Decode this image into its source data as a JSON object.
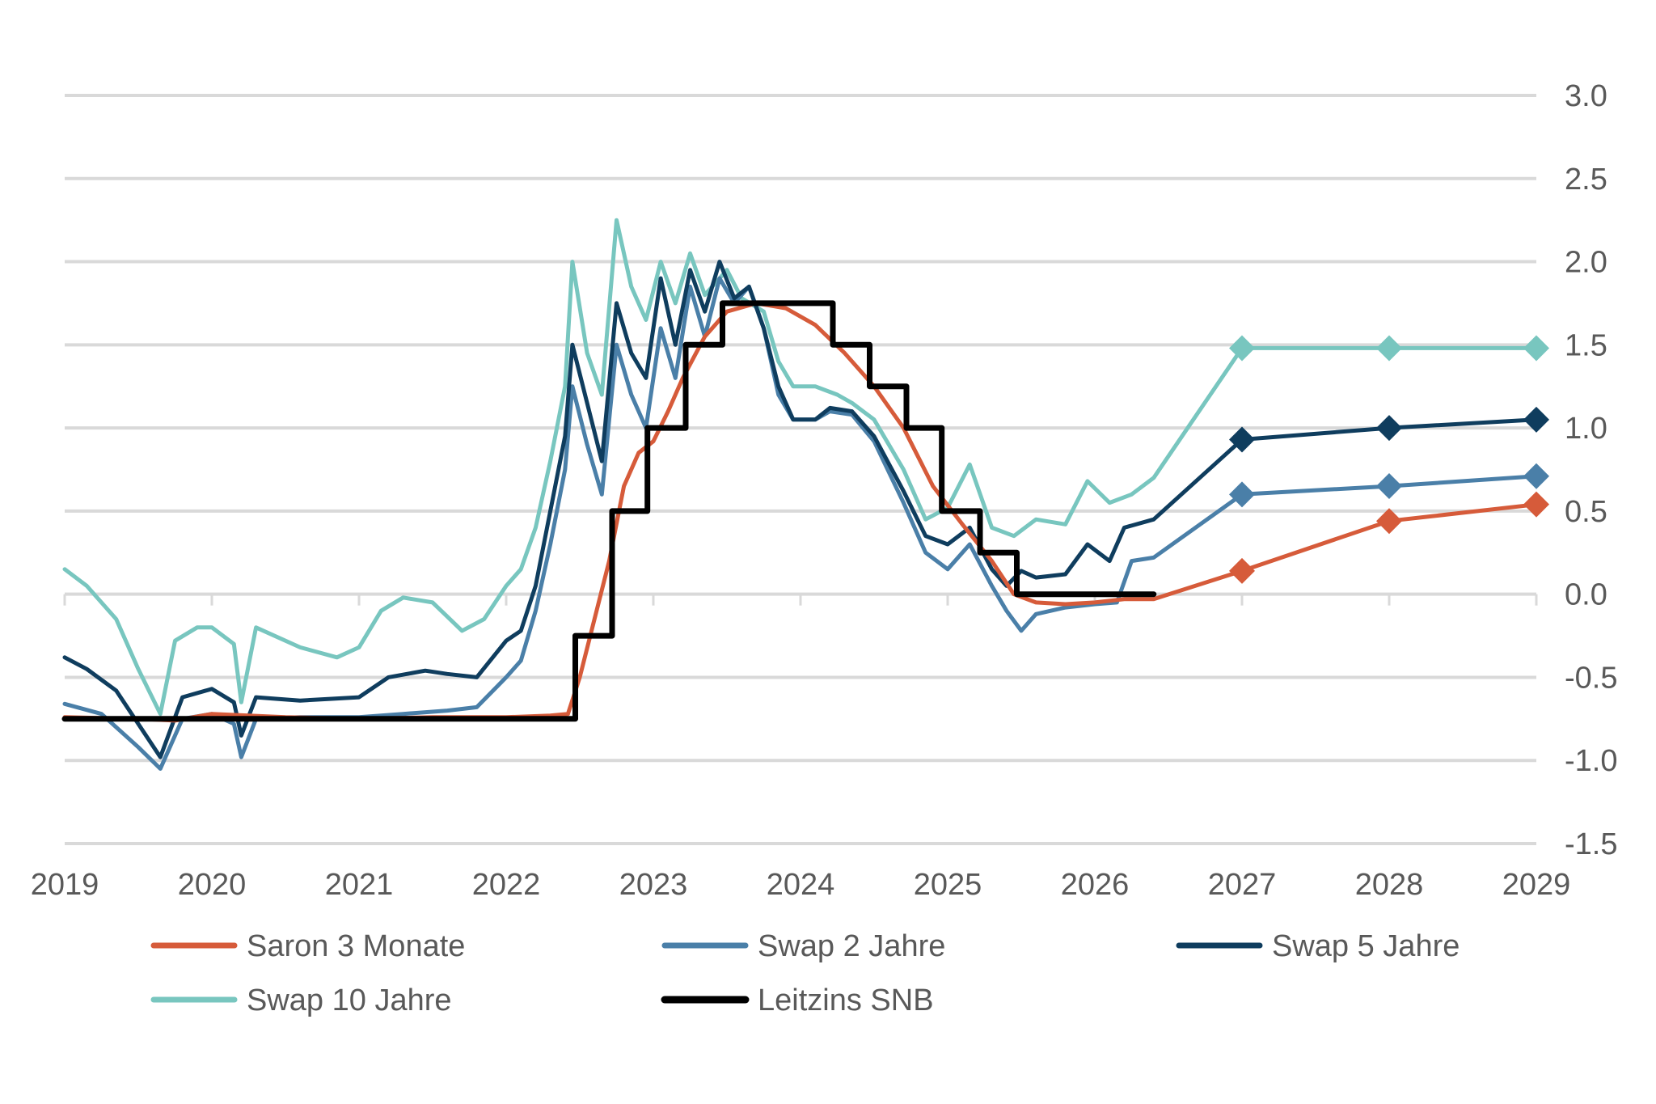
{
  "chart_data": {
    "type": "line",
    "title": "",
    "xlabel": "",
    "ylabel": "",
    "xlim": [
      2019,
      2029
    ],
    "ylim": [
      -1.5,
      3.0
    ],
    "x_ticks": [
      "2019",
      "2020",
      "2021",
      "2022",
      "2023",
      "2024",
      "2025",
      "2026",
      "2027",
      "2028",
      "2029"
    ],
    "y_ticks": [
      "3.0",
      "2.5",
      "2.0",
      "1.5",
      "1.0",
      "0.5",
      "0.0",
      "-0.5",
      "-1.0",
      "-1.5"
    ],
    "grid": "horizontal",
    "y_axis_side": "right",
    "legend_placement": "bottom",
    "series": [
      {
        "name": "Saron 3 Monate",
        "color": "#d65b3a",
        "points": [
          [
            2019.0,
            -0.74
          ],
          [
            2019.5,
            -0.75
          ],
          [
            2019.75,
            -0.76
          ],
          [
            2020.0,
            -0.72
          ],
          [
            2020.5,
            -0.74
          ],
          [
            2021.0,
            -0.75
          ],
          [
            2021.5,
            -0.74
          ],
          [
            2022.0,
            -0.74
          ],
          [
            2022.3,
            -0.73
          ],
          [
            2022.42,
            -0.72
          ],
          [
            2022.5,
            -0.5
          ],
          [
            2022.6,
            -0.15
          ],
          [
            2022.7,
            0.2
          ],
          [
            2022.8,
            0.65
          ],
          [
            2022.9,
            0.85
          ],
          [
            2023.0,
            0.92
          ],
          [
            2023.1,
            1.1
          ],
          [
            2023.2,
            1.3
          ],
          [
            2023.35,
            1.55
          ],
          [
            2023.5,
            1.7
          ],
          [
            2023.7,
            1.75
          ],
          [
            2023.9,
            1.72
          ],
          [
            2024.1,
            1.62
          ],
          [
            2024.3,
            1.45
          ],
          [
            2024.5,
            1.25
          ],
          [
            2024.7,
            1.0
          ],
          [
            2024.9,
            0.65
          ],
          [
            2025.1,
            0.42
          ],
          [
            2025.3,
            0.2
          ],
          [
            2025.45,
            0.0
          ],
          [
            2025.6,
            -0.05
          ],
          [
            2025.8,
            -0.06
          ],
          [
            2026.0,
            -0.05
          ],
          [
            2026.2,
            -0.03
          ],
          [
            2026.4,
            -0.03
          ],
          [
            2027.0,
            0.14
          ],
          [
            2028.0,
            0.44
          ],
          [
            2029.0,
            0.54
          ]
        ]
      },
      {
        "name": "Swap 2 Jahre",
        "color": "#4a7fa8",
        "points": [
          [
            2019.0,
            -0.66
          ],
          [
            2019.25,
            -0.72
          ],
          [
            2019.5,
            -0.92
          ],
          [
            2019.65,
            -1.05
          ],
          [
            2019.8,
            -0.75
          ],
          [
            2020.0,
            -0.72
          ],
          [
            2020.15,
            -0.78
          ],
          [
            2020.2,
            -0.98
          ],
          [
            2020.3,
            -0.75
          ],
          [
            2020.6,
            -0.74
          ],
          [
            2021.0,
            -0.74
          ],
          [
            2021.3,
            -0.72
          ],
          [
            2021.6,
            -0.7
          ],
          [
            2021.8,
            -0.68
          ],
          [
            2022.0,
            -0.5
          ],
          [
            2022.1,
            -0.4
          ],
          [
            2022.2,
            -0.1
          ],
          [
            2022.3,
            0.3
          ],
          [
            2022.4,
            0.75
          ],
          [
            2022.45,
            1.25
          ],
          [
            2022.55,
            0.9
          ],
          [
            2022.65,
            0.6
          ],
          [
            2022.75,
            1.5
          ],
          [
            2022.85,
            1.2
          ],
          [
            2022.95,
            1.0
          ],
          [
            2023.05,
            1.6
          ],
          [
            2023.15,
            1.3
          ],
          [
            2023.25,
            1.85
          ],
          [
            2023.35,
            1.55
          ],
          [
            2023.45,
            1.9
          ],
          [
            2023.55,
            1.75
          ],
          [
            2023.65,
            1.85
          ],
          [
            2023.75,
            1.6
          ],
          [
            2023.85,
            1.2
          ],
          [
            2023.95,
            1.05
          ],
          [
            2024.1,
            1.05
          ],
          [
            2024.2,
            1.1
          ],
          [
            2024.35,
            1.08
          ],
          [
            2024.5,
            0.92
          ],
          [
            2024.7,
            0.55
          ],
          [
            2024.85,
            0.25
          ],
          [
            2025.0,
            0.15
          ],
          [
            2025.15,
            0.3
          ],
          [
            2025.3,
            0.05
          ],
          [
            2025.4,
            -0.1
          ],
          [
            2025.5,
            -0.22
          ],
          [
            2025.6,
            -0.12
          ],
          [
            2025.8,
            -0.08
          ],
          [
            2026.0,
            -0.06
          ],
          [
            2026.15,
            -0.05
          ],
          [
            2026.25,
            0.2
          ],
          [
            2026.4,
            0.22
          ],
          [
            2027.0,
            0.6
          ],
          [
            2028.0,
            0.65
          ],
          [
            2029.0,
            0.71
          ]
        ]
      },
      {
        "name": "Swap 5 Jahre",
        "color": "#0f3d5e",
        "points": [
          [
            2019.0,
            -0.38
          ],
          [
            2019.15,
            -0.45
          ],
          [
            2019.35,
            -0.58
          ],
          [
            2019.5,
            -0.78
          ],
          [
            2019.65,
            -0.98
          ],
          [
            2019.8,
            -0.62
          ],
          [
            2020.0,
            -0.57
          ],
          [
            2020.15,
            -0.65
          ],
          [
            2020.2,
            -0.85
          ],
          [
            2020.3,
            -0.62
          ],
          [
            2020.6,
            -0.64
          ],
          [
            2021.0,
            -0.62
          ],
          [
            2021.2,
            -0.5
          ],
          [
            2021.45,
            -0.46
          ],
          [
            2021.6,
            -0.48
          ],
          [
            2021.8,
            -0.5
          ],
          [
            2022.0,
            -0.28
          ],
          [
            2022.1,
            -0.22
          ],
          [
            2022.2,
            0.05
          ],
          [
            2022.3,
            0.5
          ],
          [
            2022.4,
            0.95
          ],
          [
            2022.45,
            1.5
          ],
          [
            2022.55,
            1.15
          ],
          [
            2022.65,
            0.8
          ],
          [
            2022.75,
            1.75
          ],
          [
            2022.85,
            1.45
          ],
          [
            2022.95,
            1.3
          ],
          [
            2023.05,
            1.9
          ],
          [
            2023.15,
            1.5
          ],
          [
            2023.25,
            1.95
          ],
          [
            2023.35,
            1.7
          ],
          [
            2023.45,
            2.0
          ],
          [
            2023.55,
            1.78
          ],
          [
            2023.65,
            1.85
          ],
          [
            2023.75,
            1.6
          ],
          [
            2023.85,
            1.25
          ],
          [
            2023.95,
            1.05
          ],
          [
            2024.1,
            1.05
          ],
          [
            2024.2,
            1.12
          ],
          [
            2024.35,
            1.1
          ],
          [
            2024.5,
            0.95
          ],
          [
            2024.7,
            0.62
          ],
          [
            2024.85,
            0.35
          ],
          [
            2025.0,
            0.3
          ],
          [
            2025.15,
            0.4
          ],
          [
            2025.3,
            0.15
          ],
          [
            2025.4,
            0.05
          ],
          [
            2025.5,
            0.14
          ],
          [
            2025.6,
            0.1
          ],
          [
            2025.8,
            0.12
          ],
          [
            2025.95,
            0.3
          ],
          [
            2026.1,
            0.2
          ],
          [
            2026.2,
            0.4
          ],
          [
            2026.4,
            0.45
          ],
          [
            2027.0,
            0.93
          ],
          [
            2028.0,
            1.0
          ],
          [
            2029.0,
            1.05
          ]
        ]
      },
      {
        "name": "Swap 10 Jahre",
        "color": "#78c6bf",
        "points": [
          [
            2019.0,
            0.15
          ],
          [
            2019.15,
            0.05
          ],
          [
            2019.35,
            -0.15
          ],
          [
            2019.5,
            -0.45
          ],
          [
            2019.65,
            -0.72
          ],
          [
            2019.75,
            -0.28
          ],
          [
            2019.9,
            -0.2
          ],
          [
            2020.0,
            -0.2
          ],
          [
            2020.15,
            -0.3
          ],
          [
            2020.2,
            -0.65
          ],
          [
            2020.3,
            -0.2
          ],
          [
            2020.6,
            -0.32
          ],
          [
            2020.85,
            -0.38
          ],
          [
            2021.0,
            -0.32
          ],
          [
            2021.15,
            -0.1
          ],
          [
            2021.3,
            -0.02
          ],
          [
            2021.5,
            -0.05
          ],
          [
            2021.7,
            -0.22
          ],
          [
            2021.85,
            -0.15
          ],
          [
            2022.0,
            0.05
          ],
          [
            2022.1,
            0.15
          ],
          [
            2022.2,
            0.4
          ],
          [
            2022.3,
            0.8
          ],
          [
            2022.4,
            1.25
          ],
          [
            2022.45,
            2.0
          ],
          [
            2022.55,
            1.45
          ],
          [
            2022.65,
            1.2
          ],
          [
            2022.75,
            2.25
          ],
          [
            2022.85,
            1.85
          ],
          [
            2022.95,
            1.65
          ],
          [
            2023.05,
            2.0
          ],
          [
            2023.15,
            1.75
          ],
          [
            2023.25,
            2.05
          ],
          [
            2023.35,
            1.8
          ],
          [
            2023.5,
            1.95
          ],
          [
            2023.6,
            1.78
          ],
          [
            2023.75,
            1.7
          ],
          [
            2023.85,
            1.4
          ],
          [
            2023.95,
            1.25
          ],
          [
            2024.1,
            1.25
          ],
          [
            2024.25,
            1.2
          ],
          [
            2024.35,
            1.15
          ],
          [
            2024.5,
            1.05
          ],
          [
            2024.7,
            0.75
          ],
          [
            2024.85,
            0.45
          ],
          [
            2025.0,
            0.52
          ],
          [
            2025.15,
            0.78
          ],
          [
            2025.3,
            0.4
          ],
          [
            2025.45,
            0.35
          ],
          [
            2025.6,
            0.45
          ],
          [
            2025.8,
            0.42
          ],
          [
            2025.95,
            0.68
          ],
          [
            2026.1,
            0.55
          ],
          [
            2026.25,
            0.6
          ],
          [
            2026.4,
            0.7
          ],
          [
            2027.0,
            1.48
          ],
          [
            2028.0,
            1.48
          ],
          [
            2029.0,
            1.48
          ]
        ]
      },
      {
        "name": "Leitzins SNB",
        "color": "#000000",
        "step": true,
        "points": [
          [
            2019.0,
            -0.75
          ],
          [
            2022.47,
            -0.75
          ],
          [
            2022.47,
            -0.25
          ],
          [
            2022.72,
            -0.25
          ],
          [
            2022.72,
            0.5
          ],
          [
            2022.96,
            0.5
          ],
          [
            2022.96,
            1.0
          ],
          [
            2023.22,
            1.0
          ],
          [
            2023.22,
            1.5
          ],
          [
            2023.47,
            1.5
          ],
          [
            2023.47,
            1.75
          ],
          [
            2024.22,
            1.75
          ],
          [
            2024.22,
            1.5
          ],
          [
            2024.47,
            1.5
          ],
          [
            2024.47,
            1.25
          ],
          [
            2024.72,
            1.25
          ],
          [
            2024.72,
            1.0
          ],
          [
            2024.96,
            1.0
          ],
          [
            2024.96,
            0.5
          ],
          [
            2025.22,
            0.5
          ],
          [
            2025.22,
            0.25
          ],
          [
            2025.47,
            0.25
          ],
          [
            2025.47,
            0.0
          ],
          [
            2026.4,
            0.0
          ]
        ]
      }
    ],
    "forecast_markers": {
      "x": [
        2027,
        2028,
        2029
      ],
      "series": [
        "Saron 3 Monate",
        "Swap 2 Jahre",
        "Swap 5 Jahre",
        "Swap 10 Jahre"
      ]
    }
  }
}
